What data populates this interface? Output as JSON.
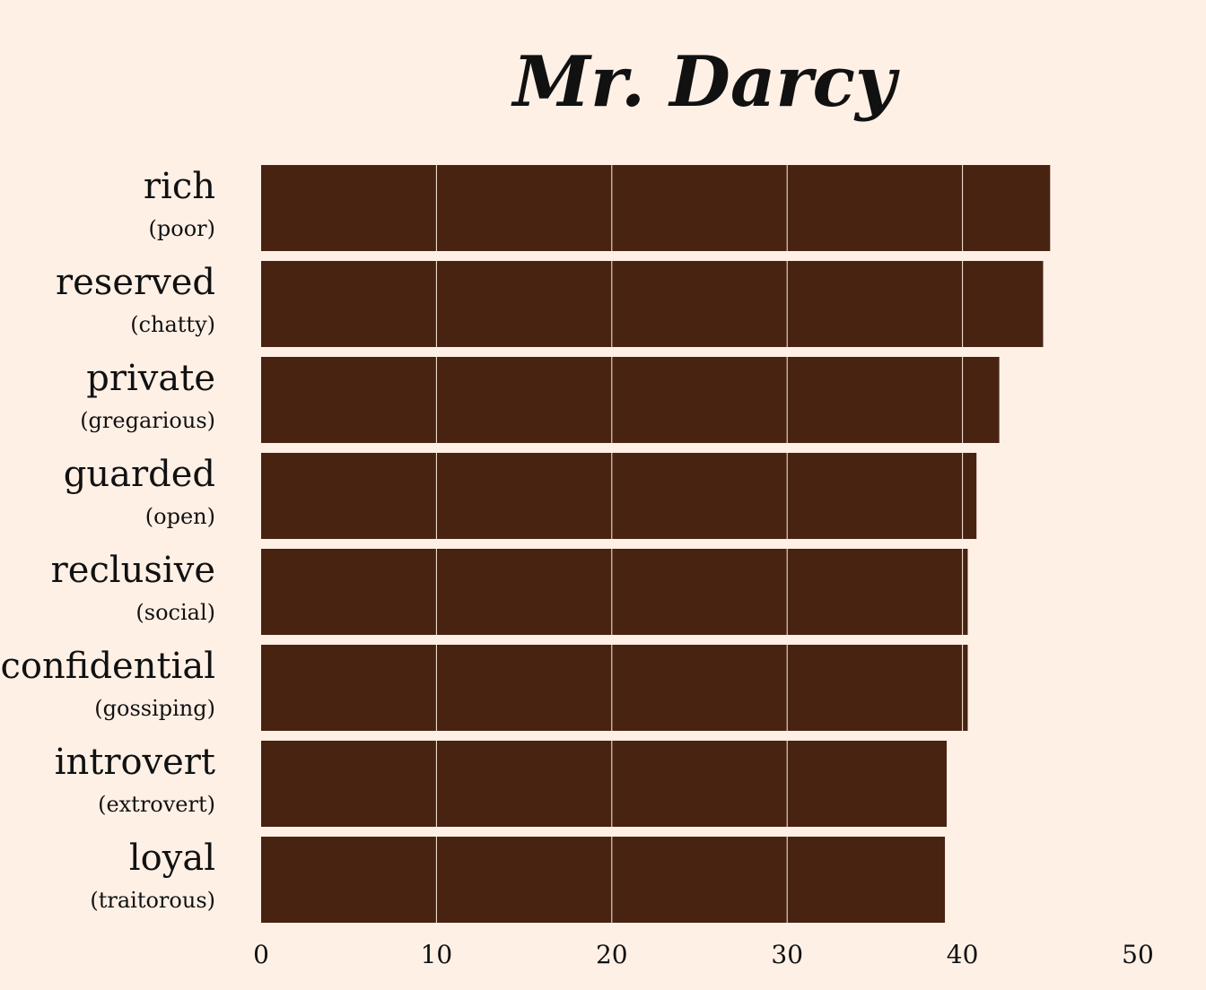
{
  "chart_data": {
    "type": "bar",
    "orientation": "horizontal",
    "title": "Mr. Darcy",
    "categories": [
      "rich",
      "reserved",
      "private",
      "guarded",
      "reclusive",
      "confidential",
      "introvert",
      "loyal"
    ],
    "subcategories": [
      "(poor)",
      "(chatty)",
      "(gregarious)",
      "(open)",
      "(social)",
      "(gossiping)",
      "(extrovert)",
      "(traitorous)"
    ],
    "values": [
      45.0,
      44.6,
      42.1,
      40.8,
      40.3,
      40.3,
      39.1,
      39.0
    ],
    "xticks": [
      "0",
      "10",
      "20",
      "30",
      "40",
      "50"
    ],
    "xlim": [
      0,
      50
    ],
    "grid": "vertical",
    "colors": {
      "background": "#fff0e6",
      "bar": "#482312",
      "grid": "#fff0e6",
      "text": "#111111"
    }
  }
}
